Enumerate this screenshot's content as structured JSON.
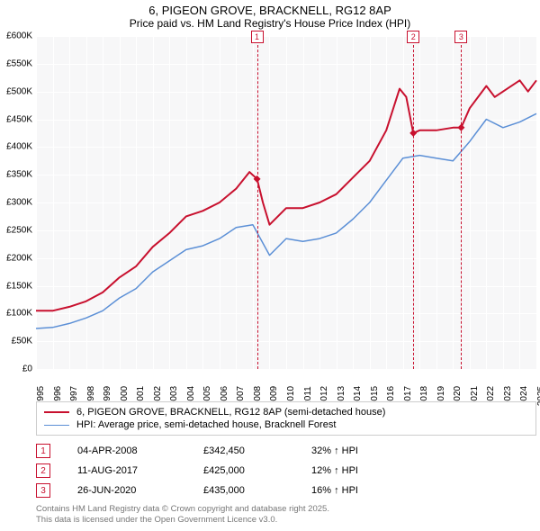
{
  "title": {
    "line1": "6, PIGEON GROVE, BRACKNELL, RG12 8AP",
    "line2": "Price paid vs. HM Land Registry's House Price Index (HPI)"
  },
  "chart": {
    "type": "line",
    "background_color": "#f7f7f8",
    "grid_color": "#ffffff",
    "x_range": [
      1995,
      2025
    ],
    "y_range": [
      0,
      600000
    ],
    "y_ticks": [
      0,
      50000,
      100000,
      150000,
      200000,
      250000,
      300000,
      350000,
      400000,
      450000,
      500000,
      550000,
      600000
    ],
    "y_tick_labels": [
      "£0",
      "£50K",
      "£100K",
      "£150K",
      "£200K",
      "£250K",
      "£300K",
      "£350K",
      "£400K",
      "£450K",
      "£500K",
      "£550K",
      "£600K"
    ],
    "x_ticks": [
      1995,
      1996,
      1997,
      1998,
      1999,
      2000,
      2001,
      2002,
      2003,
      2004,
      2005,
      2006,
      2007,
      2008,
      2009,
      2010,
      2011,
      2012,
      2013,
      2014,
      2015,
      2016,
      2017,
      2018,
      2019,
      2020,
      2021,
      2022,
      2023,
      2024,
      2025
    ],
    "series": [
      {
        "name": "property",
        "label": "6, PIGEON GROVE, BRACKNELL, RG12 8AP (semi-detached house)",
        "color": "#c8102e",
        "line_width": 2,
        "points": [
          [
            1995,
            105000
          ],
          [
            1996,
            105000
          ],
          [
            1997,
            112000
          ],
          [
            1998,
            122000
          ],
          [
            1999,
            138000
          ],
          [
            2000,
            165000
          ],
          [
            2001,
            185000
          ],
          [
            2002,
            220000
          ],
          [
            2003,
            245000
          ],
          [
            2004,
            275000
          ],
          [
            2005,
            285000
          ],
          [
            2006,
            300000
          ],
          [
            2007,
            325000
          ],
          [
            2007.8,
            355000
          ],
          [
            2008.25,
            342450
          ],
          [
            2008.6,
            300000
          ],
          [
            2009,
            260000
          ],
          [
            2010,
            290000
          ],
          [
            2011,
            290000
          ],
          [
            2012,
            300000
          ],
          [
            2013,
            315000
          ],
          [
            2014,
            345000
          ],
          [
            2015,
            375000
          ],
          [
            2016,
            430000
          ],
          [
            2016.8,
            505000
          ],
          [
            2017.2,
            490000
          ],
          [
            2017.62,
            425000
          ],
          [
            2018,
            430000
          ],
          [
            2019,
            430000
          ],
          [
            2020,
            435000
          ],
          [
            2020.49,
            435000
          ],
          [
            2021,
            470000
          ],
          [
            2022,
            510000
          ],
          [
            2022.5,
            490000
          ],
          [
            2023,
            500000
          ],
          [
            2024,
            520000
          ],
          [
            2024.5,
            500000
          ],
          [
            2025,
            520000
          ]
        ]
      },
      {
        "name": "hpi",
        "label": "HPI: Average price, semi-detached house, Bracknell Forest",
        "color": "#5b8fd6",
        "line_width": 1.5,
        "points": [
          [
            1995,
            73000
          ],
          [
            1996,
            75000
          ],
          [
            1997,
            82000
          ],
          [
            1998,
            92000
          ],
          [
            1999,
            105000
          ],
          [
            2000,
            128000
          ],
          [
            2001,
            145000
          ],
          [
            2002,
            175000
          ],
          [
            2003,
            195000
          ],
          [
            2004,
            215000
          ],
          [
            2005,
            222000
          ],
          [
            2006,
            235000
          ],
          [
            2007,
            255000
          ],
          [
            2008,
            260000
          ],
          [
            2009,
            205000
          ],
          [
            2010,
            235000
          ],
          [
            2011,
            230000
          ],
          [
            2012,
            235000
          ],
          [
            2013,
            245000
          ],
          [
            2014,
            270000
          ],
          [
            2015,
            300000
          ],
          [
            2016,
            340000
          ],
          [
            2017,
            380000
          ],
          [
            2018,
            385000
          ],
          [
            2019,
            380000
          ],
          [
            2020,
            375000
          ],
          [
            2021,
            410000
          ],
          [
            2022,
            450000
          ],
          [
            2023,
            435000
          ],
          [
            2024,
            445000
          ],
          [
            2025,
            460000
          ]
        ]
      }
    ],
    "sale_markers": [
      {
        "n": "1",
        "x": 2008.25,
        "color": "#c8102e"
      },
      {
        "n": "2",
        "x": 2017.62,
        "color": "#c8102e"
      },
      {
        "n": "3",
        "x": 2020.49,
        "color": "#c8102e"
      }
    ]
  },
  "legend": {
    "items": [
      {
        "color": "#c8102e",
        "width": 2,
        "text": "6, PIGEON GROVE, BRACKNELL, RG12 8AP (semi-detached house)"
      },
      {
        "color": "#5b8fd6",
        "width": 1.5,
        "text": "HPI: Average price, semi-detached house, Bracknell Forest"
      }
    ]
  },
  "sales": [
    {
      "n": "1",
      "color": "#c8102e",
      "date": "04-APR-2008",
      "price": "£342,450",
      "pct": "32% ↑ HPI"
    },
    {
      "n": "2",
      "color": "#c8102e",
      "date": "11-AUG-2017",
      "price": "£425,000",
      "pct": "12% ↑ HPI"
    },
    {
      "n": "3",
      "color": "#c8102e",
      "date": "26-JUN-2020",
      "price": "£435,000",
      "pct": "16% ↑ HPI"
    }
  ],
  "footer": {
    "line1": "Contains HM Land Registry data © Crown copyright and database right 2025.",
    "line2": "This data is licensed under the Open Government Licence v3.0."
  }
}
